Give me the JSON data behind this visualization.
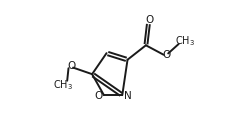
{
  "background_color": "#ffffff",
  "line_color": "#1a1a1a",
  "line_width": 1.4,
  "text_color": "#1a1a1a",
  "font_size": 7.5,
  "figsize": [
    2.38,
    1.26
  ],
  "dpi": 100,
  "xlim": [
    -0.1,
    1.05
  ],
  "ylim": [
    0.05,
    1.0
  ]
}
